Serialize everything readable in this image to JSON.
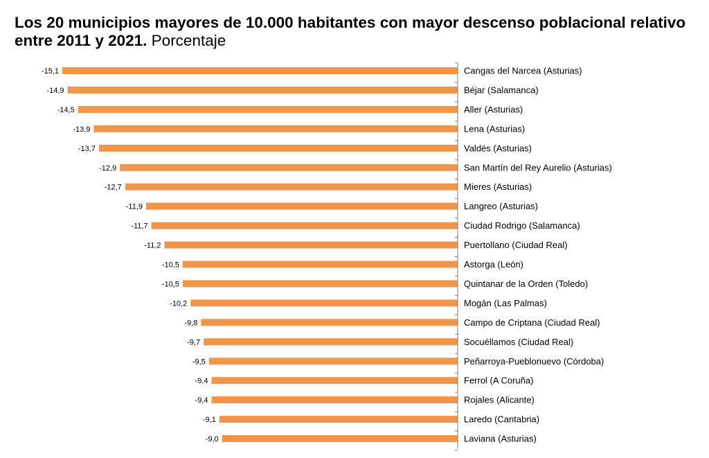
{
  "title": {
    "bold": "Los 20 municipios mayores de 10.000 habitantes con mayor descenso poblacional relativo entre 2011 y 2021.",
    "normal": "Porcentaje"
  },
  "chart_data": {
    "type": "bar",
    "orientation": "horizontal",
    "bar_color": "#F0964B",
    "axis_color": "#7F7F7F",
    "categories": [
      "Cangas del Narcea (Asturias)",
      "Béjar (Salamanca)",
      "Aller (Asturias)",
      "Lena (Asturias)",
      "Valdés (Asturias)",
      "San Martín del Rey Aurelio (Asturias)",
      "Mieres (Asturias)",
      "Langreo (Asturias)",
      "Ciudad Rodrigo (Salamanca)",
      "Puertollano (Ciudad Real)",
      "Astorga (León)",
      "Quintanar de la Orden (Toledo)",
      "Mogán (Las Palmas)",
      "Campo de Criptana (Ciudad Real)",
      "Socuéllamos (Ciudad Real)",
      "Peñarroya-Pueblonuevo (Córdoba)",
      "Ferrol (A Coruña)",
      "Rojales (Alicante)",
      "Laredo (Cantabria)",
      "Laviana (Asturias)"
    ],
    "values": [
      -15.1,
      -14.9,
      -14.5,
      -13.9,
      -13.7,
      -12.9,
      -12.7,
      -11.9,
      -11.7,
      -11.2,
      -10.5,
      -10.5,
      -10.2,
      -9.8,
      -9.7,
      -9.5,
      -9.4,
      -9.4,
      -9.1,
      -9.0
    ],
    "value_labels": [
      "-15,1",
      "-14,9",
      "-14,5",
      "-13,9",
      "-13,7",
      "-12,9",
      "-12,7",
      "-11,9",
      "-11,7",
      "-11,2",
      "-10,5",
      "-10,5",
      "-10,2",
      "-9,8",
      "-9,7",
      "-9,5",
      "-9,4",
      "-9,4",
      "-9,1",
      "-9,0"
    ],
    "xlim": [
      -15.1,
      0
    ],
    "grid": false,
    "legend": "none"
  }
}
